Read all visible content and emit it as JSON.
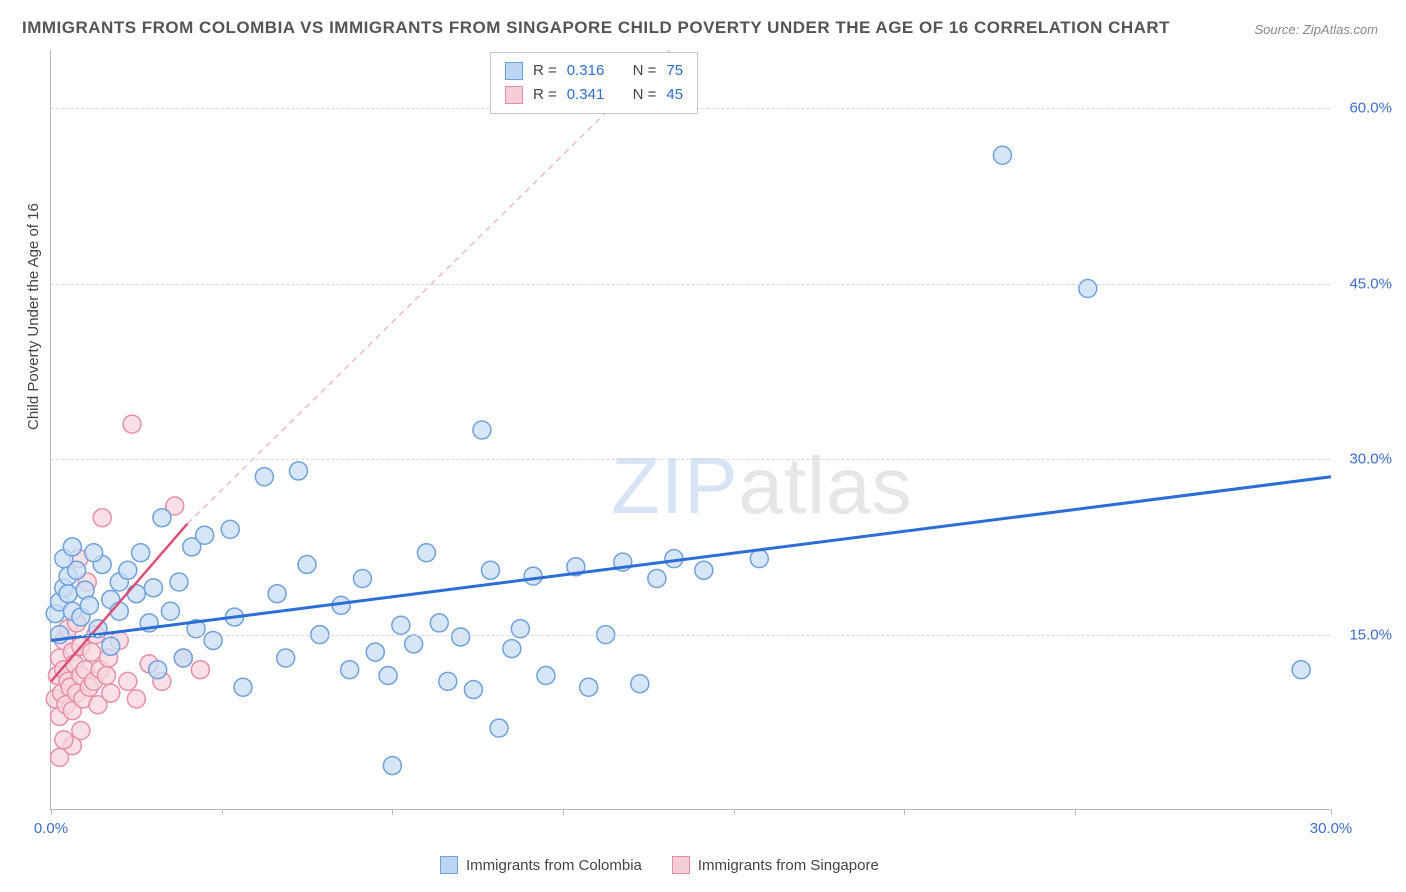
{
  "title": "IMMIGRANTS FROM COLOMBIA VS IMMIGRANTS FROM SINGAPORE CHILD POVERTY UNDER THE AGE OF 16 CORRELATION CHART",
  "source": "Source: ZipAtlas.com",
  "y_axis_label": "Child Poverty Under the Age of 16",
  "watermark_left": "ZIP",
  "watermark_right": "atlas",
  "chart": {
    "type": "scatter",
    "xlim": [
      0,
      30
    ],
    "ylim": [
      0,
      65
    ],
    "x_ticks": [
      0,
      4,
      8,
      12,
      16,
      20,
      24,
      30
    ],
    "x_tick_labels": {
      "0": "0.0%",
      "30": "30.0%"
    },
    "y_gridlines": [
      15,
      30,
      45,
      60
    ],
    "y_tick_labels": {
      "15": "15.0%",
      "30": "30.0%",
      "45": "45.0%",
      "60": "60.0%"
    },
    "background_color": "#ffffff",
    "grid_color": "#d8d8d8",
    "axis_color": "#bbbbbb",
    "tick_label_color": "#3b6fc9",
    "marker_radius": 9,
    "marker_stroke_width": 1.5,
    "series": [
      {
        "name": "Immigrants from Colombia",
        "fill": "#c9ddf4",
        "stroke": "#6fa1dd",
        "swatch_fill": "#bcd5f0",
        "swatch_stroke": "#6fa1dd",
        "r_value": "0.316",
        "n_value": "75",
        "trend": {
          "x1": 0,
          "y1": 14.5,
          "x2": 30,
          "y2": 28.5,
          "color": "#2c6ed5",
          "width": 3,
          "dash": ""
        },
        "points": [
          [
            0.1,
            16.8
          ],
          [
            0.2,
            17.8
          ],
          [
            0.3,
            19.0
          ],
          [
            0.2,
            15.0
          ],
          [
            0.4,
            18.5
          ],
          [
            0.4,
            20.0
          ],
          [
            0.6,
            20.5
          ],
          [
            0.5,
            17.0
          ],
          [
            0.8,
            18.8
          ],
          [
            0.7,
            16.5
          ],
          [
            1.2,
            21.0
          ],
          [
            1.0,
            22.0
          ],
          [
            1.4,
            18.0
          ],
          [
            1.6,
            19.5
          ],
          [
            1.4,
            14.0
          ],
          [
            1.8,
            20.5
          ],
          [
            1.6,
            17.0
          ],
          [
            2.0,
            18.5
          ],
          [
            2.1,
            22.0
          ],
          [
            2.3,
            16.0
          ],
          [
            2.5,
            12.0
          ],
          [
            2.6,
            25.0
          ],
          [
            2.8,
            17.0
          ],
          [
            3.0,
            19.5
          ],
          [
            3.1,
            13.0
          ],
          [
            3.3,
            22.5
          ],
          [
            3.6,
            23.5
          ],
          [
            3.8,
            14.5
          ],
          [
            4.2,
            24.0
          ],
          [
            4.3,
            16.5
          ],
          [
            4.5,
            10.5
          ],
          [
            5.0,
            28.5
          ],
          [
            5.3,
            18.5
          ],
          [
            5.5,
            13.0
          ],
          [
            5.8,
            29.0
          ],
          [
            6.0,
            21.0
          ],
          [
            6.3,
            15.0
          ],
          [
            6.8,
            17.5
          ],
          [
            7.0,
            12.0
          ],
          [
            7.3,
            19.8
          ],
          [
            7.6,
            13.5
          ],
          [
            7.9,
            11.5
          ],
          [
            8.2,
            15.8
          ],
          [
            8.0,
            3.8
          ],
          [
            8.5,
            14.2
          ],
          [
            8.8,
            22.0
          ],
          [
            9.1,
            16.0
          ],
          [
            9.3,
            11.0
          ],
          [
            9.6,
            14.8
          ],
          [
            9.9,
            10.3
          ],
          [
            10.1,
            32.5
          ],
          [
            10.3,
            20.5
          ],
          [
            10.5,
            7.0
          ],
          [
            10.8,
            13.8
          ],
          [
            11.0,
            15.5
          ],
          [
            11.3,
            20.0
          ],
          [
            11.6,
            11.5
          ],
          [
            12.3,
            20.8
          ],
          [
            12.6,
            10.5
          ],
          [
            13.0,
            15.0
          ],
          [
            13.4,
            21.2
          ],
          [
            13.8,
            10.8
          ],
          [
            14.2,
            19.8
          ],
          [
            14.6,
            21.5
          ],
          [
            15.3,
            20.5
          ],
          [
            16.6,
            21.5
          ],
          [
            22.3,
            56.0
          ],
          [
            24.3,
            44.6
          ],
          [
            29.3,
            12.0
          ],
          [
            0.3,
            21.5
          ],
          [
            0.5,
            22.5
          ],
          [
            0.9,
            17.5
          ],
          [
            1.1,
            15.5
          ],
          [
            2.4,
            19.0
          ],
          [
            3.4,
            15.5
          ]
        ]
      },
      {
        "name": "Immigrants from Singapore",
        "fill": "#f6d5dd",
        "stroke": "#e78fa6",
        "swatch_fill": "#f5cdd7",
        "swatch_stroke": "#e78fa6",
        "r_value": "0.341",
        "n_value": "45",
        "trend": {
          "x1": 0,
          "y1": 11.0,
          "x2": 3.2,
          "y2": 24.5,
          "color": "#d94f77",
          "width": 2.5,
          "dash": ""
        },
        "trend_ext": {
          "x1": 3.2,
          "y1": 24.5,
          "x2": 14.5,
          "y2": 65,
          "color": "#f0b8c7",
          "width": 1.5,
          "dash": "6 5"
        },
        "points": [
          [
            0.1,
            9.5
          ],
          [
            0.15,
            11.5
          ],
          [
            0.2,
            13.0
          ],
          [
            0.2,
            8.0
          ],
          [
            0.25,
            10.0
          ],
          [
            0.3,
            12.0
          ],
          [
            0.3,
            14.5
          ],
          [
            0.35,
            9.0
          ],
          [
            0.4,
            11.0
          ],
          [
            0.4,
            15.5
          ],
          [
            0.45,
            10.5
          ],
          [
            0.5,
            13.5
          ],
          [
            0.5,
            8.5
          ],
          [
            0.55,
            12.5
          ],
          [
            0.6,
            16.0
          ],
          [
            0.6,
            10.0
          ],
          [
            0.65,
            21.5
          ],
          [
            0.7,
            11.5
          ],
          [
            0.7,
            14.0
          ],
          [
            0.75,
            9.5
          ],
          [
            0.8,
            12.0
          ],
          [
            0.85,
            19.5
          ],
          [
            0.9,
            10.5
          ],
          [
            0.95,
            13.5
          ],
          [
            1.0,
            11.0
          ],
          [
            1.05,
            15.0
          ],
          [
            1.1,
            9.0
          ],
          [
            1.15,
            12.0
          ],
          [
            1.2,
            25.0
          ],
          [
            1.3,
            11.5
          ],
          [
            1.35,
            13.0
          ],
          [
            1.4,
            10.0
          ],
          [
            1.6,
            14.5
          ],
          [
            1.8,
            11.0
          ],
          [
            1.9,
            33.0
          ],
          [
            2.0,
            9.5
          ],
          [
            2.3,
            12.5
          ],
          [
            2.6,
            11.0
          ],
          [
            2.9,
            26.0
          ],
          [
            3.1,
            13.0
          ],
          [
            3.5,
            12.0
          ],
          [
            0.2,
            4.5
          ],
          [
            0.5,
            5.5
          ],
          [
            0.3,
            6.0
          ],
          [
            0.7,
            6.8
          ]
        ]
      }
    ]
  },
  "legend_top": {
    "r_label": "R =",
    "n_label": "N ="
  },
  "legend_bottom": {
    "series1_label": "Immigrants from Colombia",
    "series2_label": "Immigrants from Singapore"
  }
}
